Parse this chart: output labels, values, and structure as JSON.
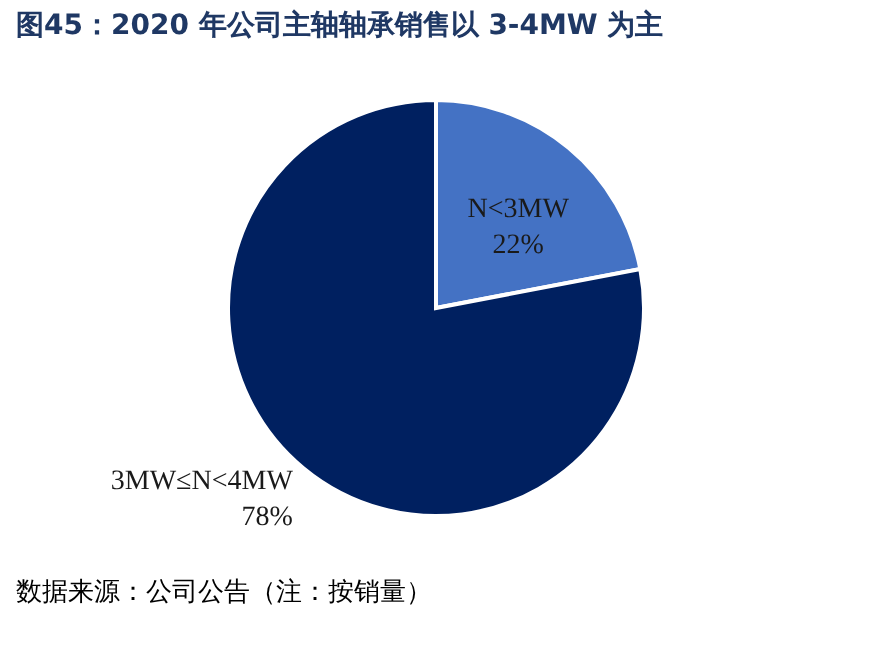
{
  "chart_data": {
    "type": "pie",
    "title": "图45：2020 年公司主轴轴承销售以 3-4MW 为主",
    "categories": [
      "N<3MW",
      "3MW≤N<4MW"
    ],
    "values": [
      22,
      78
    ],
    "value_labels": [
      "22%",
      "78%"
    ],
    "colors": [
      "#4472c4",
      "#002060"
    ],
    "legend": false,
    "annotations": [
      "数据来源：公司公告（注：按销量）"
    ]
  }
}
